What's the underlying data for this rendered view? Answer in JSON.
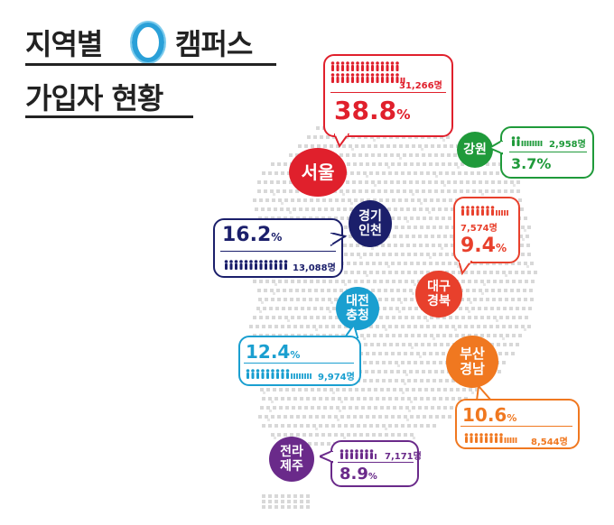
{
  "title": {
    "line1a": "지역별",
    "line1b": "캠퍼스",
    "line2": "가입자 현황"
  },
  "colors": {
    "seoul": "#e0202c",
    "gangwon": "#1f9a3a",
    "gyeonggi": "#1b1f6b",
    "daegu": "#e8402c",
    "daejeon": "#1a9fd0",
    "busan": "#f07820",
    "jeolla": "#6a2a8a",
    "map": "#d8d8d8",
    "logo": "#2aa0d8"
  },
  "regions": {
    "seoul": {
      "name": "서울",
      "percent": "38.8",
      "count": "31,266명"
    },
    "gangwon": {
      "name": "강원",
      "percent": "3.7",
      "count": "2,958명"
    },
    "gyeonggi": {
      "name_line1": "경기",
      "name_line2": "인천",
      "percent": "16.2",
      "count": "13,088명"
    },
    "daegu": {
      "name_line1": "대구",
      "name_line2": "경북",
      "percent": "9.4",
      "count": "7,574명"
    },
    "daejeon": {
      "name_line1": "대전",
      "name_line2": "충청",
      "percent": "12.4",
      "count": "9,974명"
    },
    "busan": {
      "name_line1": "부산",
      "name_line2": "경남",
      "percent": "10.6",
      "count": "8,544명"
    },
    "jeolla": {
      "name_line1": "전라",
      "name_line2": "제주",
      "percent": "8.9",
      "count": "7,171명"
    }
  },
  "unit": "%"
}
